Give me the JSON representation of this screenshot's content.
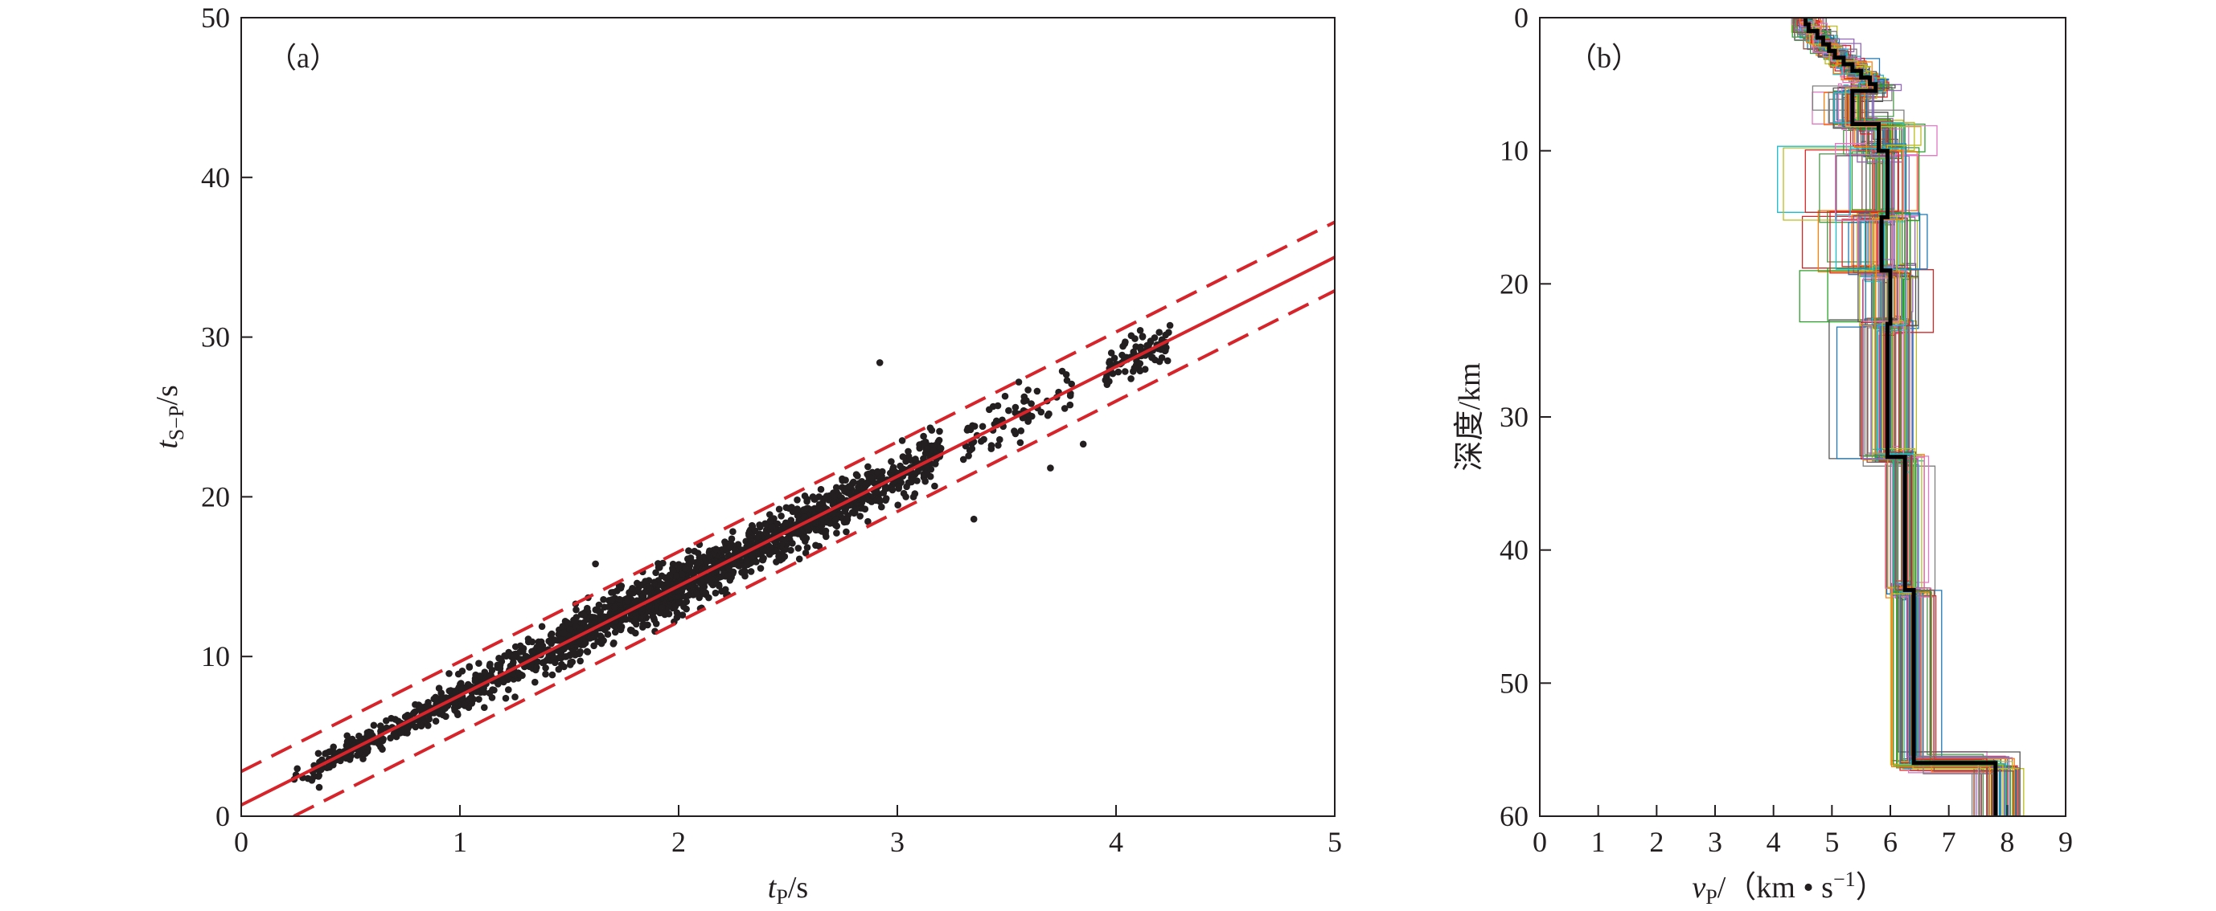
{
  "chart_data": [
    {
      "type": "scatter",
      "panel_label": "（a）",
      "xlabel": {
        "var": "t",
        "sub": "P",
        "unit": "/s"
      },
      "ylabel": {
        "var": "t",
        "sub": "S−P",
        "unit": "/s"
      },
      "xlim": [
        0,
        5
      ],
      "ylim": [
        0,
        50
      ],
      "xticks": [
        0,
        1,
        2,
        3,
        4,
        5
      ],
      "yticks": [
        0,
        10,
        20,
        30,
        40,
        50
      ],
      "grid": false,
      "legend": "none",
      "point_color": "#231f20",
      "line_color": "#d6242a",
      "fit_line": {
        "style": "solid",
        "points": [
          [
            0,
            0.7
          ],
          [
            5,
            35.0
          ]
        ]
      },
      "bounds": [
        {
          "style": "dashed",
          "points": [
            [
              0,
              2.8
            ],
            [
              5,
              37.2
            ]
          ]
        },
        {
          "style": "dashed",
          "points": [
            [
              0.24,
              0.0
            ],
            [
              5,
              32.9
            ]
          ]
        }
      ],
      "point_clusters": [
        {
          "x_from": 0.22,
          "x_to": 0.35,
          "n": 10,
          "spread": 0.6
        },
        {
          "x_from": 0.35,
          "x_to": 0.95,
          "n": 230,
          "spread": 0.55
        },
        {
          "x_from": 0.95,
          "x_to": 1.45,
          "n": 220,
          "spread": 0.9
        },
        {
          "x_from": 1.45,
          "x_to": 2.2,
          "n": 700,
          "spread": 1.15
        },
        {
          "x_from": 2.2,
          "x_to": 2.75,
          "n": 420,
          "spread": 1.05
        },
        {
          "x_from": 2.75,
          "x_to": 3.2,
          "n": 240,
          "spread": 1.1
        },
        {
          "x_from": 3.3,
          "x_to": 3.8,
          "n": 70,
          "spread": 1.2
        },
        {
          "x_from": 3.95,
          "x_to": 4.25,
          "n": 90,
          "spread": 1.0
        }
      ],
      "outliers": [
        [
          2.92,
          28.4
        ],
        [
          3.35,
          18.6
        ],
        [
          3.85,
          23.3
        ],
        [
          1.62,
          15.8
        ],
        [
          3.7,
          21.8
        ]
      ]
    },
    {
      "type": "line",
      "panel_label": "（b）",
      "xlabel": {
        "var": "v",
        "sub": "P",
        "unit_prefix": "/（km • s",
        "unit_exp": "−1",
        "unit_suffix": "）"
      },
      "ylabel": "深度/km",
      "xlim": [
        0,
        9
      ],
      "ylim": [
        60,
        0
      ],
      "xticks": [
        0,
        1,
        2,
        3,
        4,
        5,
        6,
        7,
        8,
        9
      ],
      "yticks": [
        0,
        10,
        20,
        30,
        40,
        50,
        60
      ],
      "grid": false,
      "legend": "none",
      "best_model_color": "#000000",
      "best_model": {
        "depths": [
          0,
          0.5,
          1,
          1.5,
          2,
          2.5,
          3,
          3.5,
          4,
          4.5,
          5,
          5.5,
          8,
          10,
          15,
          19,
          23,
          33,
          43,
          56,
          60
        ],
        "velocities": [
          4.55,
          4.6,
          4.75,
          4.85,
          4.95,
          5.05,
          5.2,
          5.35,
          5.5,
          5.65,
          5.75,
          5.35,
          5.8,
          5.95,
          5.85,
          6.0,
          5.95,
          6.25,
          6.4,
          7.8,
          7.8
        ]
      },
      "ensemble_colors": [
        "#7f7f7f",
        "#1f77b4",
        "#2ca02c",
        "#d62728",
        "#9467bd",
        "#8c564b",
        "#e377c2",
        "#17becf",
        "#bcbd22",
        "#ff7f0e",
        "#555555",
        "#4a9a4a"
      ],
      "ensemble_count": 70
    }
  ]
}
